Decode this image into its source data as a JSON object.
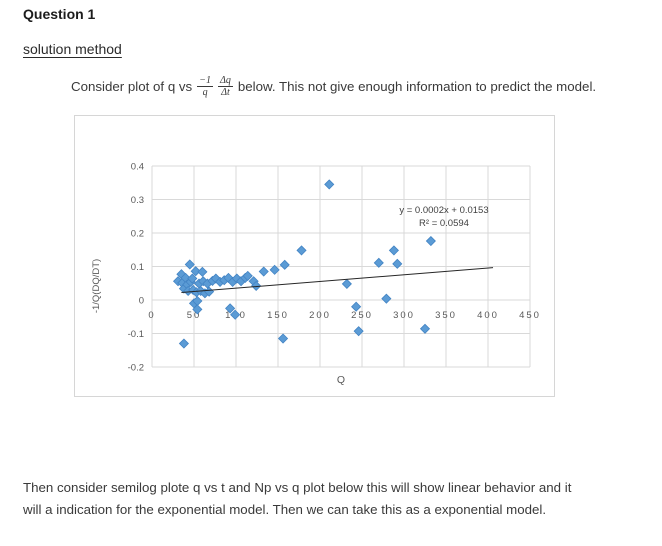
{
  "page": {
    "heading": "Question 1",
    "subheading": "solution method",
    "intro": {
      "prefix": "Consider plot of  q vs",
      "frac1_num": "−1",
      "frac1_den": "q",
      "frac2_num": "Δq",
      "frac2_den": "Δt",
      "suffix": "below. This not give enough information to predict the model."
    },
    "outro_line1": "Then consider semilog plote q vs t  and Np vs q plot below this will show linear behavior and it",
    "outro_line2": "will a indication for the exponential model. Then we can take this as a exponential model."
  },
  "chart_data": {
    "type": "scatter",
    "title": "",
    "xlabel": "Q",
    "ylabel": "-1/Q(DQ/DT)",
    "xlim": [
      0,
      450
    ],
    "ylim": [
      -0.2,
      0.4
    ],
    "x_ticks": [
      0,
      50,
      100,
      150,
      200,
      250,
      300,
      350,
      400,
      450
    ],
    "y_ticks": [
      0.4,
      0.3,
      0.2,
      0.1,
      0,
      -0.1,
      -0.2
    ],
    "y_tick_labels": [
      "0.4",
      "0.3",
      "0.2",
      "0.1",
      "0",
      "-0.1",
      "-0.2"
    ],
    "grid": true,
    "legend": "none",
    "points": [
      [
        31,
        0.056
      ],
      [
        35,
        0.077
      ],
      [
        36,
        0.051
      ],
      [
        38,
        0.034
      ],
      [
        40,
        0.066
      ],
      [
        42,
        0.046
      ],
      [
        43,
        0.027
      ],
      [
        45,
        0.106
      ],
      [
        46,
        0.054
      ],
      [
        48,
        0.064
      ],
      [
        49,
        0.03
      ],
      [
        50,
        -0.01
      ],
      [
        52,
        0.086
      ],
      [
        53,
        0.023
      ],
      [
        54,
        -0.003
      ],
      [
        54,
        -0.028
      ],
      [
        56,
        0.049
      ],
      [
        58,
        0.027
      ],
      [
        60,
        0.084
      ],
      [
        61,
        0.056
      ],
      [
        63,
        0.02
      ],
      [
        66,
        0.049
      ],
      [
        68,
        0.025
      ],
      [
        72,
        0.057
      ],
      [
        76,
        0.064
      ],
      [
        81,
        0.054
      ],
      [
        86,
        0.059
      ],
      [
        91,
        0.066
      ],
      [
        93,
        -0.025
      ],
      [
        96,
        0.054
      ],
      [
        99,
        -0.044
      ],
      [
        101,
        0.064
      ],
      [
        106,
        0.056
      ],
      [
        111,
        0.066
      ],
      [
        114,
        0.072
      ],
      [
        121,
        0.056
      ],
      [
        124,
        0.042
      ],
      [
        133,
        0.085
      ],
      [
        146,
        0.09
      ],
      [
        156,
        -0.115
      ],
      [
        158,
        0.105
      ],
      [
        178,
        0.148
      ],
      [
        211,
        0.345
      ],
      [
        232,
        0.048
      ],
      [
        243,
        -0.02
      ],
      [
        246,
        -0.093
      ],
      [
        270,
        0.111
      ],
      [
        279,
        0.004
      ],
      [
        288,
        0.148
      ],
      [
        292,
        0.108
      ],
      [
        325,
        -0.086
      ],
      [
        332,
        0.176
      ],
      [
        38,
        -0.13
      ]
    ],
    "trendline": {
      "slope": 0.0002,
      "intercept": 0.0153,
      "x_start": 35,
      "x_end": 406,
      "label_line1": "y = 0.0002x + 0.0153",
      "label_line2": "R² = 0.0594"
    },
    "marker_color": "#5B9BD5",
    "marker_edge_color": "#4384C4",
    "trendline_color": "#262626",
    "equation_color": "#404040",
    "grid_color": "#D9D9D9",
    "tick_color": "#595959"
  }
}
